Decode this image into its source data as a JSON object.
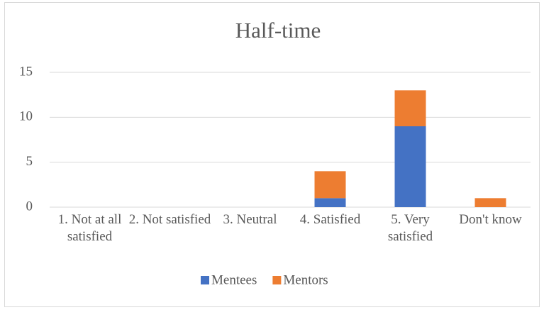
{
  "chart_data": {
    "type": "bar",
    "stacked": true,
    "title": "Half-time",
    "categories": [
      "1. Not at all satisfied",
      "2. Not satisfied",
      "3. Neutral",
      "4. Satisfied",
      "5. Very satisfied",
      "Don't know"
    ],
    "series": [
      {
        "name": "Mentees",
        "color": "#4472c4",
        "values": [
          0,
          0,
          0,
          1,
          9,
          0
        ]
      },
      {
        "name": "Mentors",
        "color": "#ed7d31",
        "values": [
          0,
          0,
          0,
          3,
          4,
          1
        ]
      }
    ],
    "ylim": [
      0,
      15
    ],
    "yticks": [
      0,
      5,
      10,
      15
    ],
    "grid": true,
    "legend": "bottom"
  }
}
